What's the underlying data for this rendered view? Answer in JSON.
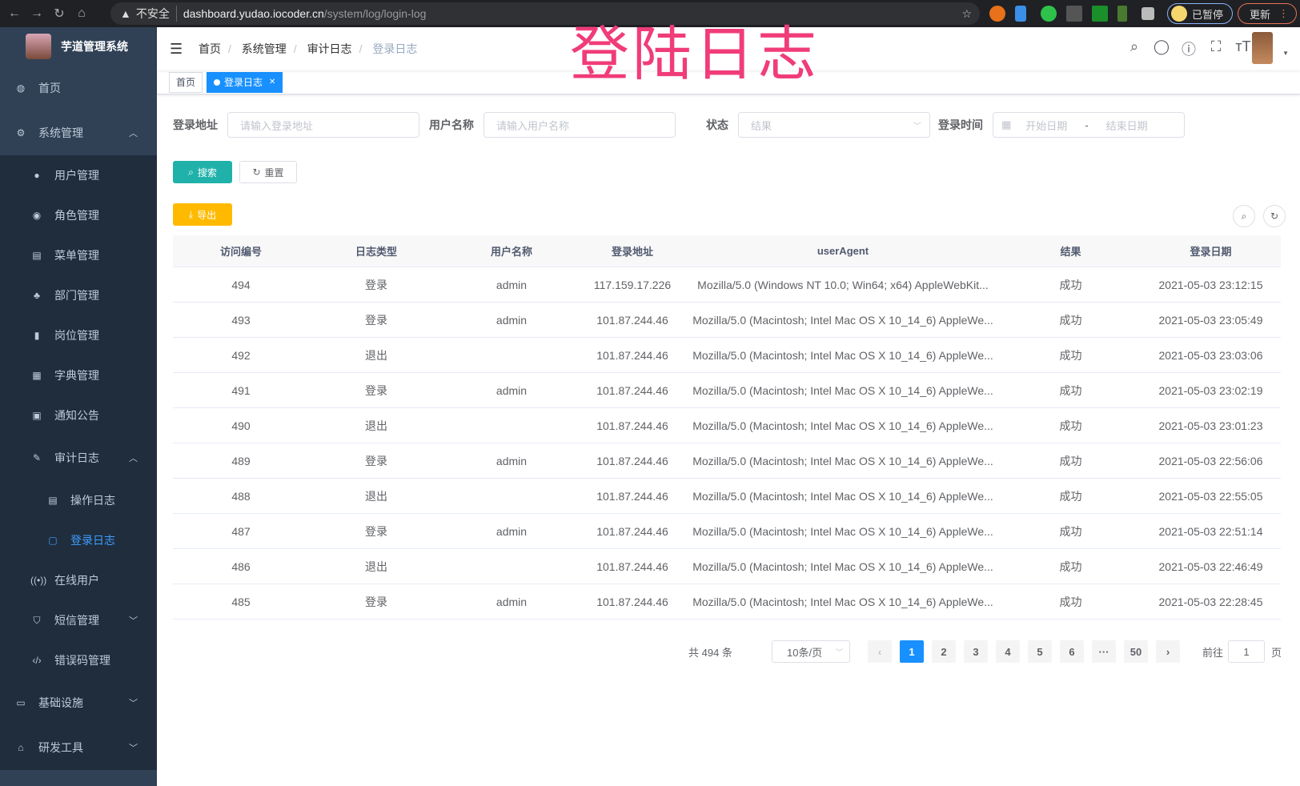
{
  "browser": {
    "security": "不安全",
    "host": "dashboard.yudao.iocoder.cn",
    "path": "/system/log/login-log",
    "profile": "已暂停",
    "update": "更新"
  },
  "overlay_title": "登陆日志",
  "sidebar": {
    "logo": "芋道管理系统",
    "items": [
      {
        "label": "首页",
        "icon": "dashboard-icon"
      },
      {
        "label": "系统管理",
        "icon": "gear-icon",
        "expanded": true,
        "children": [
          {
            "label": "用户管理",
            "icon": "user-icon"
          },
          {
            "label": "角色管理",
            "icon": "role-icon"
          },
          {
            "label": "菜单管理",
            "icon": "menu-icon"
          },
          {
            "label": "部门管理",
            "icon": "tree-icon"
          },
          {
            "label": "岗位管理",
            "icon": "post-icon"
          },
          {
            "label": "字典管理",
            "icon": "dict-icon"
          },
          {
            "label": "通知公告",
            "icon": "message-icon"
          },
          {
            "label": "审计日志",
            "icon": "edit-icon",
            "expanded": true,
            "children": [
              {
                "label": "操作日志",
                "icon": "form-icon"
              },
              {
                "label": "登录日志",
                "icon": "logininfor-icon",
                "active": true
              }
            ]
          },
          {
            "label": "在线用户",
            "icon": "online-icon"
          },
          {
            "label": "短信管理",
            "icon": "shield-icon"
          },
          {
            "label": "错误码管理",
            "icon": "code-icon"
          }
        ]
      },
      {
        "label": "基础设施",
        "icon": "monitor-icon"
      },
      {
        "label": "研发工具",
        "icon": "tool-icon"
      }
    ]
  },
  "breadcrumb": [
    "首页",
    "系统管理",
    "审计日志",
    "登录日志"
  ],
  "tags": [
    {
      "label": "首页"
    },
    {
      "label": "登录日志",
      "active": true
    }
  ],
  "filters": {
    "ip_label": "登录地址",
    "ip_placeholder": "请输入登录地址",
    "user_label": "用户名称",
    "user_placeholder": "请输入用户名称",
    "status_label": "状态",
    "status_placeholder": "结果",
    "time_label": "登录时间",
    "start_placeholder": "开始日期",
    "range_sep": "-",
    "end_placeholder": "结束日期",
    "search": "搜索",
    "reset": "重置",
    "export": "导出"
  },
  "table": {
    "columns": [
      "访问编号",
      "日志类型",
      "用户名称",
      "登录地址",
      "userAgent",
      "结果",
      "登录日期"
    ],
    "rows": [
      [
        "494",
        "登录",
        "admin",
        "117.159.17.226",
        "Mozilla/5.0 (Windows NT 10.0; Win64; x64) AppleWebKit...",
        "成功",
        "2021-05-03 23:12:15"
      ],
      [
        "493",
        "登录",
        "admin",
        "101.87.244.46",
        "Mozilla/5.0 (Macintosh; Intel Mac OS X 10_14_6) AppleWe...",
        "成功",
        "2021-05-03 23:05:49"
      ],
      [
        "492",
        "退出",
        "",
        "101.87.244.46",
        "Mozilla/5.0 (Macintosh; Intel Mac OS X 10_14_6) AppleWe...",
        "成功",
        "2021-05-03 23:03:06"
      ],
      [
        "491",
        "登录",
        "admin",
        "101.87.244.46",
        "Mozilla/5.0 (Macintosh; Intel Mac OS X 10_14_6) AppleWe...",
        "成功",
        "2021-05-03 23:02:19"
      ],
      [
        "490",
        "退出",
        "",
        "101.87.244.46",
        "Mozilla/5.0 (Macintosh; Intel Mac OS X 10_14_6) AppleWe...",
        "成功",
        "2021-05-03 23:01:23"
      ],
      [
        "489",
        "登录",
        "admin",
        "101.87.244.46",
        "Mozilla/5.0 (Macintosh; Intel Mac OS X 10_14_6) AppleWe...",
        "成功",
        "2021-05-03 22:56:06"
      ],
      [
        "488",
        "退出",
        "",
        "101.87.244.46",
        "Mozilla/5.0 (Macintosh; Intel Mac OS X 10_14_6) AppleWe...",
        "成功",
        "2021-05-03 22:55:05"
      ],
      [
        "487",
        "登录",
        "admin",
        "101.87.244.46",
        "Mozilla/5.0 (Macintosh; Intel Mac OS X 10_14_6) AppleWe...",
        "成功",
        "2021-05-03 22:51:14"
      ],
      [
        "486",
        "退出",
        "",
        "101.87.244.46",
        "Mozilla/5.0 (Macintosh; Intel Mac OS X 10_14_6) AppleWe...",
        "成功",
        "2021-05-03 22:46:49"
      ],
      [
        "485",
        "登录",
        "admin",
        "101.87.244.46",
        "Mozilla/5.0 (Macintosh; Intel Mac OS X 10_14_6) AppleWe...",
        "成功",
        "2021-05-03 22:28:45"
      ]
    ]
  },
  "pagination": {
    "total": "共 494 条",
    "page_size": "10条/页",
    "pages": [
      "1",
      "2",
      "3",
      "4",
      "5",
      "6",
      "···",
      "50"
    ],
    "current": "1",
    "goto_label": "前往",
    "goto_value": "1",
    "goto_suffix": "页"
  },
  "colors": {
    "sidebar": "#304156",
    "primary": "#1890ff",
    "search_btn": "#20b2aa",
    "export_btn": "#ffba00",
    "overlay": "#f03c78"
  }
}
